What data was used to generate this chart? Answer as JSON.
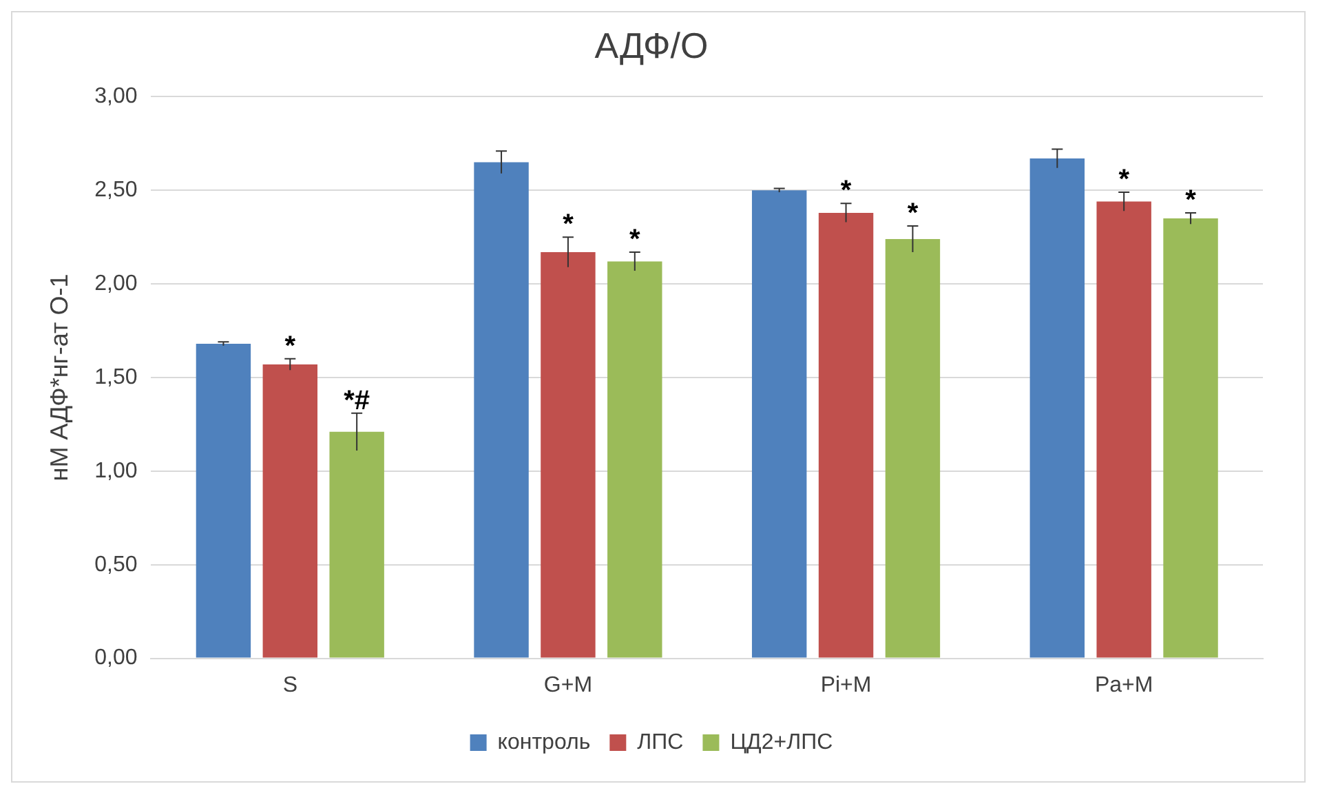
{
  "chart_data": {
    "type": "bar",
    "title": "АДФ/О",
    "ylabel": "нМ АДФ*нг-ат О-1",
    "categories": [
      "S",
      "G+M",
      "Pi+M",
      "Pa+M"
    ],
    "series": [
      {
        "name": "контроль",
        "color": "#4f81bd",
        "values": [
          1.68,
          2.65,
          2.5,
          2.67
        ],
        "errors": [
          0.01,
          0.06,
          0.01,
          0.05
        ]
      },
      {
        "name": "ЛПС",
        "color": "#c0504d",
        "values": [
          1.57,
          2.17,
          2.38,
          2.44
        ],
        "errors": [
          0.03,
          0.08,
          0.05,
          0.05
        ],
        "value_labels": [
          "*",
          "*",
          "*",
          "*"
        ]
      },
      {
        "name": "ЦД2+ЛПС",
        "color": "#9bbb59",
        "values": [
          1.21,
          2.12,
          2.24,
          2.35
        ],
        "errors": [
          0.1,
          0.05,
          0.07,
          0.03
        ],
        "value_labels": [
          "*#",
          "*",
          "*",
          "*"
        ]
      }
    ],
    "ylim": [
      0,
      3
    ],
    "yticks": [
      {
        "value": 0,
        "label": "0,00"
      },
      {
        "value": 0.5,
        "label": "0,50"
      },
      {
        "value": 1,
        "label": "1,00"
      },
      {
        "value": 1.5,
        "label": "1,50"
      },
      {
        "value": 2,
        "label": "2,00"
      },
      {
        "value": 2.5,
        "label": "2,50"
      },
      {
        "value": 3,
        "label": "3,00"
      }
    ],
    "grid": "y",
    "legend": "bottom"
  }
}
